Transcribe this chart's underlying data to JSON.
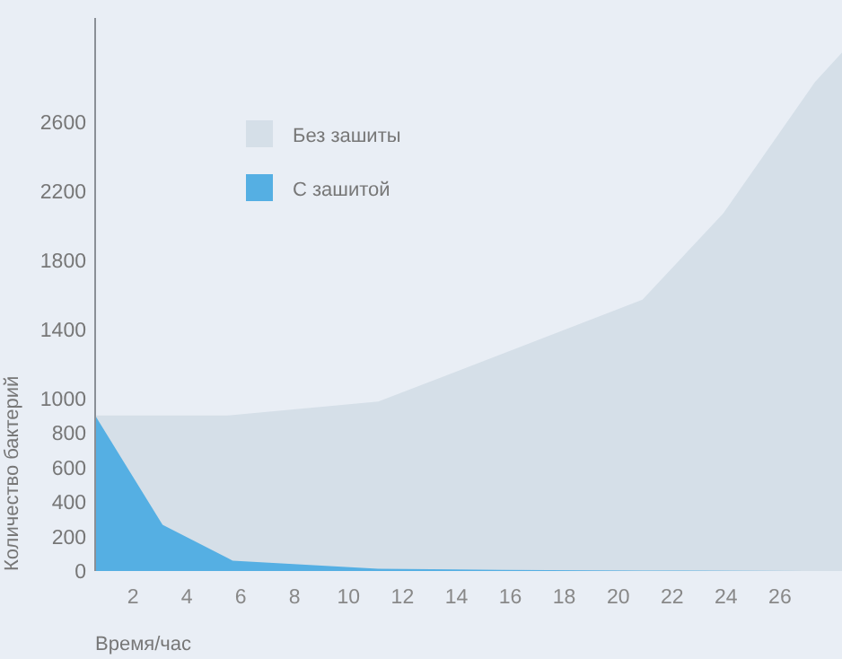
{
  "chart_data": {
    "type": "area",
    "xlabel": "Время/час",
    "ylabel": "Количество бактерий",
    "xlim": [
      0.6,
      28.3
    ],
    "xticks": [
      2,
      4,
      6,
      8,
      10,
      12,
      14,
      16,
      18,
      20,
      22,
      24,
      26
    ],
    "ylim": [
      0,
      3200
    ],
    "yticks": [
      0,
      200,
      400,
      600,
      800,
      1000,
      1400,
      1800,
      2200,
      2600
    ],
    "legend": "top left",
    "grid": false,
    "series": [
      {
        "name": "Без зашиты",
        "color": "#d5dfe8",
        "x": [
          0.6,
          5.5,
          11.1,
          20.9,
          23.9,
          27.3,
          28.3
        ],
        "values": [
          900,
          900,
          980,
          1570,
          2070,
          2830,
          3000
        ]
      },
      {
        "name": "С зашитой",
        "color": "#55afe3",
        "x": [
          0.6,
          3.1,
          5.7,
          11.1,
          15.7,
          20.9,
          27,
          28.3
        ],
        "values": [
          900,
          267,
          60,
          13,
          7,
          3,
          0,
          0
        ]
      }
    ]
  }
}
